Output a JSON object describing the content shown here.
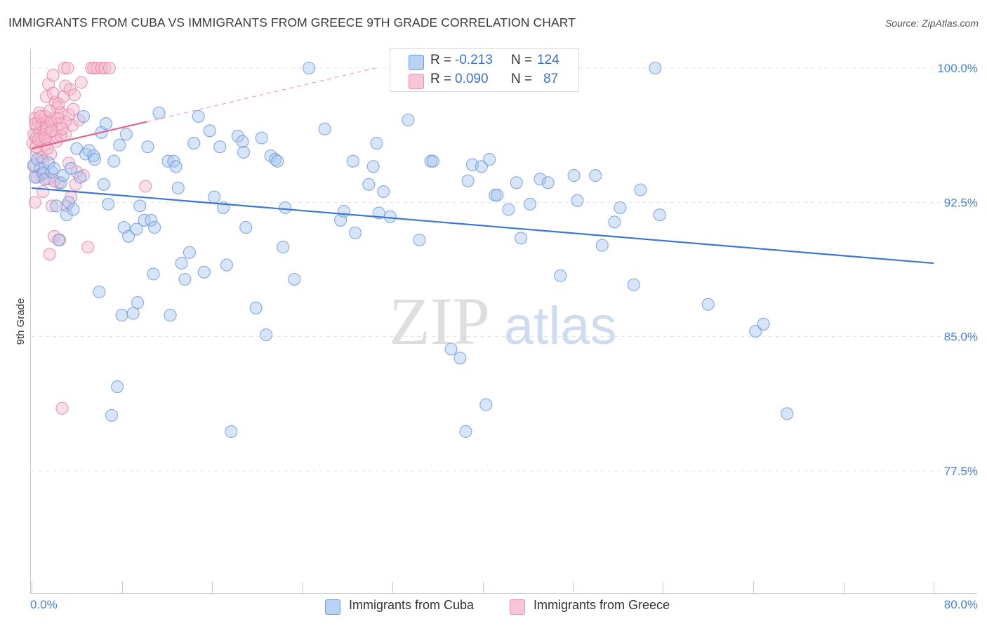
{
  "title": "IMMIGRANTS FROM CUBA VS IMMIGRANTS FROM GREECE 9TH GRADE CORRELATION CHART",
  "source": "Source: ZipAtlas.com",
  "watermark": {
    "zip": "ZIP",
    "atlas": "atlas"
  },
  "colors": {
    "cuba": "#3a78d4",
    "cuba_fill": "#a9c6ef",
    "greece": "#e8628e",
    "greece_fill": "#f6b7cb",
    "tick": "#4a7fd0",
    "grid": "#e3e3e3"
  },
  "legend": {
    "r_label": "R =",
    "n_label": "N =",
    "cuba": {
      "r": "-0.213",
      "n": "124"
    },
    "greece": {
      "r": "0.090",
      "n": "87"
    }
  },
  "bottom_legend": {
    "cuba": "Immigrants from Cuba",
    "greece": "Immigrants from Greece"
  },
  "chart_data": {
    "type": "scatter",
    "title": "IMMIGRANTS FROM CUBA VS IMMIGRANTS FROM GREECE 9TH GRADE CORRELATION CHART",
    "xlabel": "",
    "ylabel": "9th Grade",
    "xlim": [
      0,
      80
    ],
    "ylim": [
      70.5,
      101
    ],
    "x_tick_labels": {
      "min": "0.0%",
      "max": "80.0%"
    },
    "y_ticks": [
      {
        "value": 100.0,
        "label": "100.0%"
      },
      {
        "value": 92.5,
        "label": "92.5%"
      },
      {
        "value": 85.0,
        "label": "85.0%"
      },
      {
        "value": 77.5,
        "label": "77.5%"
      }
    ],
    "series": [
      {
        "name": "Immigrants from Cuba",
        "r": -0.213,
        "n": 124,
        "trend": {
          "x": [
            0,
            80
          ],
          "y": [
            93.3,
            89.1
          ]
        },
        "points": [
          [
            0.2,
            94.6
          ],
          [
            0.3,
            93.9
          ],
          [
            0.5,
            94.9
          ],
          [
            0.8,
            94.4
          ],
          [
            1.0,
            94.1
          ],
          [
            1.2,
            93.8
          ],
          [
            1.5,
            94.7
          ],
          [
            1.8,
            94.2
          ],
          [
            2.0,
            94.4
          ],
          [
            2.2,
            92.3
          ],
          [
            2.4,
            90.4
          ],
          [
            2.6,
            93.6
          ],
          [
            2.8,
            94.0
          ],
          [
            3.1,
            91.8
          ],
          [
            3.3,
            92.5
          ],
          [
            3.5,
            94.4
          ],
          [
            3.7,
            92.1
          ],
          [
            4.0,
            95.5
          ],
          [
            4.3,
            93.9
          ],
          [
            4.6,
            97.3
          ],
          [
            4.8,
            95.2
          ],
          [
            5.1,
            95.4
          ],
          [
            5.5,
            95.1
          ],
          [
            5.6,
            94.9
          ],
          [
            6.0,
            87.5
          ],
          [
            6.2,
            96.4
          ],
          [
            6.4,
            93.5
          ],
          [
            6.6,
            96.9
          ],
          [
            6.8,
            92.4
          ],
          [
            7.1,
            80.6
          ],
          [
            7.3,
            94.8
          ],
          [
            7.6,
            82.2
          ],
          [
            7.8,
            95.7
          ],
          [
            8.0,
            86.2
          ],
          [
            8.2,
            91.1
          ],
          [
            8.4,
            96.3
          ],
          [
            8.6,
            90.6
          ],
          [
            9.0,
            86.3
          ],
          [
            9.3,
            91.0
          ],
          [
            9.4,
            86.9
          ],
          [
            9.6,
            92.3
          ],
          [
            10.0,
            91.5
          ],
          [
            10.3,
            95.6
          ],
          [
            10.6,
            91.5
          ],
          [
            10.8,
            88.5
          ],
          [
            10.9,
            91.1
          ],
          [
            11.3,
            97.5
          ],
          [
            12.1,
            94.8
          ],
          [
            12.3,
            86.2
          ],
          [
            12.6,
            94.8
          ],
          [
            12.8,
            94.5
          ],
          [
            13.0,
            93.3
          ],
          [
            13.3,
            89.1
          ],
          [
            13.6,
            88.2
          ],
          [
            14.0,
            89.7
          ],
          [
            14.4,
            95.8
          ],
          [
            14.8,
            97.3
          ],
          [
            15.3,
            88.6
          ],
          [
            15.8,
            96.5
          ],
          [
            16.2,
            92.8
          ],
          [
            16.7,
            95.6
          ],
          [
            17.0,
            92.2
          ],
          [
            17.3,
            89.0
          ],
          [
            17.7,
            79.7
          ],
          [
            18.3,
            96.2
          ],
          [
            18.7,
            95.9
          ],
          [
            18.8,
            95.3
          ],
          [
            19.0,
            91.1
          ],
          [
            19.9,
            86.6
          ],
          [
            20.4,
            96.1
          ],
          [
            20.8,
            85.1
          ],
          [
            21.2,
            95.1
          ],
          [
            21.6,
            94.9
          ],
          [
            21.8,
            94.8
          ],
          [
            22.3,
            90.0
          ],
          [
            22.5,
            92.2
          ],
          [
            23.3,
            88.2
          ],
          [
            26.0,
            96.6
          ],
          [
            27.4,
            91.5
          ],
          [
            27.7,
            92.0
          ],
          [
            28.5,
            94.8
          ],
          [
            28.7,
            90.8
          ],
          [
            29.9,
            93.5
          ],
          [
            30.3,
            94.5
          ],
          [
            30.6,
            95.8
          ],
          [
            30.8,
            91.9
          ],
          [
            31.2,
            93.1
          ],
          [
            31.8,
            91.7
          ],
          [
            33.4,
            97.1
          ],
          [
            34.4,
            90.4
          ],
          [
            35.4,
            94.8
          ],
          [
            35.6,
            94.8
          ],
          [
            37.2,
            84.3
          ],
          [
            38.0,
            83.8
          ],
          [
            38.5,
            79.7
          ],
          [
            38.7,
            93.7
          ],
          [
            39.1,
            94.6
          ],
          [
            39.9,
            94.5
          ],
          [
            40.3,
            81.2
          ],
          [
            40.6,
            94.9
          ],
          [
            41.1,
            92.9
          ],
          [
            41.3,
            92.9
          ],
          [
            42.3,
            92.1
          ],
          [
            43.0,
            93.6
          ],
          [
            43.4,
            90.5
          ],
          [
            44.2,
            92.4
          ],
          [
            45.1,
            93.8
          ],
          [
            45.8,
            93.6
          ],
          [
            46.9,
            88.4
          ],
          [
            48.1,
            94.0
          ],
          [
            48.4,
            92.6
          ],
          [
            50.0,
            94.0
          ],
          [
            50.6,
            90.1
          ],
          [
            51.7,
            91.4
          ],
          [
            52.2,
            92.2
          ],
          [
            53.4,
            87.9
          ],
          [
            54.0,
            93.2
          ],
          [
            55.3,
            100.0
          ],
          [
            55.7,
            91.8
          ],
          [
            60.0,
            86.8
          ],
          [
            64.2,
            85.3
          ],
          [
            64.9,
            85.7
          ],
          [
            67.0,
            80.7
          ],
          [
            24.6,
            100.0
          ]
        ]
      },
      {
        "name": "Immigrants from Greece",
        "r": 0.09,
        "n": 87,
        "trend": {
          "x": [
            0,
            10.2
          ],
          "y": [
            95.5,
            97.0
          ]
        },
        "trend_extension": {
          "x": [
            10.2,
            30.5
          ],
          "y": [
            97.0,
            100.0
          ]
        },
        "points": [
          [
            0.1,
            95.8
          ],
          [
            0.2,
            96.3
          ],
          [
            0.2,
            94.5
          ],
          [
            0.3,
            92.5
          ],
          [
            0.3,
            97.2
          ],
          [
            0.4,
            96.1
          ],
          [
            0.5,
            96.7
          ],
          [
            0.5,
            95.3
          ],
          [
            0.6,
            97.0
          ],
          [
            0.7,
            96.4
          ],
          [
            0.8,
            94.0
          ],
          [
            0.8,
            95.9
          ],
          [
            0.9,
            96.8
          ],
          [
            1.0,
            97.1
          ],
          [
            1.0,
            93.1
          ],
          [
            1.1,
            96.3
          ],
          [
            1.2,
            95.7
          ],
          [
            1.2,
            97.3
          ],
          [
            1.3,
            98.4
          ],
          [
            1.4,
            96.0
          ],
          [
            1.5,
            99.1
          ],
          [
            1.5,
            93.8
          ],
          [
            1.6,
            96.4
          ],
          [
            1.6,
            89.6
          ],
          [
            1.7,
            95.2
          ],
          [
            1.8,
            96.9
          ],
          [
            1.8,
            92.3
          ],
          [
            1.9,
            99.6
          ],
          [
            2.0,
            97.2
          ],
          [
            2.0,
            90.6
          ],
          [
            2.1,
            98.1
          ],
          [
            2.2,
            96.2
          ],
          [
            2.3,
            97.8
          ],
          [
            2.4,
            93.6
          ],
          [
            2.5,
            90.4
          ],
          [
            2.5,
            96.9
          ],
          [
            2.6,
            97.5
          ],
          [
            2.7,
            81.0
          ],
          [
            2.8,
            98.4
          ],
          [
            2.9,
            100.0
          ],
          [
            3.0,
            96.3
          ],
          [
            3.0,
            99.0
          ],
          [
            3.1,
            92.3
          ],
          [
            3.2,
            100.0
          ],
          [
            3.3,
            97.4
          ],
          [
            3.4,
            98.8
          ],
          [
            3.5,
            92.8
          ],
          [
            3.6,
            96.8
          ],
          [
            3.7,
            97.7
          ],
          [
            3.8,
            98.5
          ],
          [
            3.9,
            93.5
          ],
          [
            4.0,
            94.2
          ],
          [
            4.2,
            97.1
          ],
          [
            4.4,
            99.2
          ],
          [
            4.6,
            94.0
          ],
          [
            5.0,
            90.0
          ],
          [
            5.3,
            100.0
          ],
          [
            5.5,
            100.0
          ],
          [
            5.8,
            100.0
          ],
          [
            6.2,
            100.0
          ],
          [
            6.5,
            100.0
          ],
          [
            6.9,
            100.0
          ],
          [
            10.1,
            93.4
          ],
          [
            0.4,
            95.6
          ],
          [
            0.6,
            96.0
          ],
          [
            0.9,
            95.0
          ],
          [
            1.1,
            94.2
          ],
          [
            1.3,
            96.6
          ],
          [
            1.7,
            97.0
          ],
          [
            2.2,
            95.9
          ],
          [
            2.6,
            96.2
          ],
          [
            3.0,
            97.0
          ],
          [
            0.3,
            96.9
          ],
          [
            0.7,
            97.5
          ],
          [
            1.2,
            96.1
          ],
          [
            1.9,
            98.6
          ],
          [
            2.3,
            97.2
          ],
          [
            2.7,
            96.6
          ],
          [
            3.3,
            94.7
          ],
          [
            1.0,
            94.8
          ],
          [
            1.4,
            95.5
          ],
          [
            2.0,
            93.7
          ],
          [
            0.5,
            93.9
          ],
          [
            0.8,
            97.3
          ],
          [
            1.6,
            97.6
          ],
          [
            2.4,
            98.0
          ],
          [
            1.8,
            96.5
          ]
        ]
      }
    ]
  }
}
